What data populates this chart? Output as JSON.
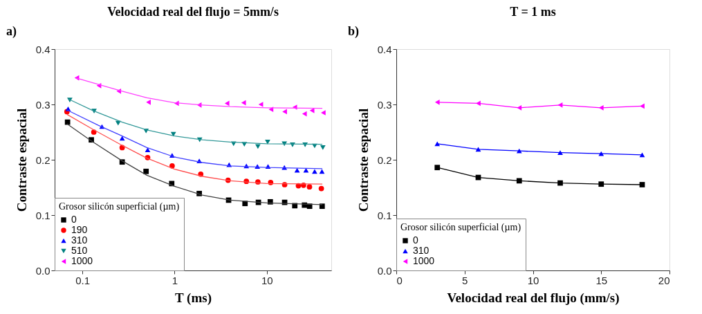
{
  "chart_data": [
    {
      "type": "scatter",
      "title": "Velocidad real del flujo = 5mm/s",
      "xlabel": "T (ms)",
      "ylabel": "Contraste espacial",
      "legend_title": "Grosor silicón superficial (µm)",
      "legend": "bottom left",
      "log": "x",
      "grid": false,
      "annotations": [
        "a)"
      ],
      "xlim": [
        0.05,
        50
      ],
      "xticks": [
        0.1,
        1,
        10
      ],
      "ylim": [
        0,
        0.4
      ],
      "yticks": [
        {
          "value": 0,
          "label": "0.0"
        },
        0.1,
        0.2,
        0.3,
        0.4
      ],
      "series": [
        {
          "name": "0",
          "type": "scatter",
          "marker": "square",
          "color": "#000000",
          "x": [
            0.069,
            0.125,
            0.27,
            0.49,
            0.93,
            1.85,
            3.85,
            5.8,
            8.1,
            10.9,
            15.6,
            20.1,
            25.6,
            29.1,
            39.8
          ],
          "values": [
            0.268,
            0.236,
            0.196,
            0.179,
            0.157,
            0.139,
            0.127,
            0.121,
            0.123,
            0.124,
            0.123,
            0.117,
            0.118,
            0.116,
            0.116
          ]
        },
        {
          "name": "190",
          "type": "scatter",
          "marker": "circle",
          "color": "#ff0000",
          "x": [
            0.068,
            0.133,
            0.27,
            0.51,
            0.94,
            1.92,
            3.8,
            6.0,
            8.0,
            11,
            15.6,
            22,
            25,
            29,
            39
          ],
          "values": [
            0.287,
            0.25,
            0.222,
            0.204,
            0.189,
            0.174,
            0.163,
            0.161,
            0.16,
            0.159,
            0.155,
            0.153,
            0.154,
            0.151,
            0.148
          ]
        },
        {
          "name": "310",
          "type": "scatter",
          "marker": "triangle",
          "color": "#0000ff",
          "x": [
            0.07,
            0.163,
            0.27,
            0.51,
            0.94,
            1.85,
            3.9,
            6.0,
            7.9,
            10.3,
            15.5,
            21.3,
            26.6,
            33,
            39.6
          ],
          "values": [
            0.292,
            0.26,
            0.239,
            0.218,
            0.208,
            0.198,
            0.191,
            0.189,
            0.188,
            0.188,
            0.186,
            0.181,
            0.181,
            0.179,
            0.179
          ]
        },
        {
          "name": "510",
          "type": "scatter",
          "marker": "triangle-down",
          "color": "#008080",
          "x": [
            0.073,
            0.134,
            0.244,
            0.49,
            0.97,
            1.87,
            4.36,
            5.7,
            8.0,
            10.2,
            15.5,
            19,
            26,
            33,
            40.5
          ],
          "values": [
            0.308,
            0.288,
            0.266,
            0.252,
            0.246,
            0.236,
            0.229,
            0.228,
            0.224,
            0.232,
            0.229,
            0.227,
            0.227,
            0.225,
            0.222
          ]
        },
        {
          "name": "1000",
          "type": "scatter",
          "marker": "triangle-left",
          "color": "#ff00ff",
          "x": [
            0.087,
            0.151,
            0.248,
            0.52,
            1.05,
            1.85,
            3.7,
            5.6,
            8.6,
            11.1,
            15.6,
            20.1,
            25.6,
            30.9,
            40.9
          ],
          "values": [
            0.348,
            0.334,
            0.324,
            0.304,
            0.302,
            0.299,
            0.302,
            0.303,
            0.3,
            0.291,
            0.287,
            0.295,
            0.283,
            0.289,
            0.285
          ]
        },
        {
          "type": "line",
          "marker": "none",
          "color": "#404040",
          "x": [
            0.068,
            0.125,
            0.27,
            0.5,
            1,
            2,
            4,
            10,
            40
          ],
          "values": [
            0.265,
            0.234,
            0.198,
            0.172,
            0.152,
            0.136,
            0.127,
            0.122,
            0.119
          ]
        },
        {
          "type": "line",
          "marker": "none",
          "color": "#ff5050",
          "x": [
            0.068,
            0.13,
            0.27,
            0.5,
            1,
            2,
            4,
            10,
            40
          ],
          "values": [
            0.282,
            0.255,
            0.226,
            0.203,
            0.183,
            0.17,
            0.162,
            0.157,
            0.156
          ]
        },
        {
          "type": "line",
          "marker": "none",
          "color": "#4040ff",
          "x": [
            0.068,
            0.15,
            0.27,
            0.5,
            1,
            2,
            4,
            10,
            40
          ],
          "values": [
            0.29,
            0.262,
            0.243,
            0.222,
            0.205,
            0.195,
            0.189,
            0.186,
            0.184
          ]
        },
        {
          "type": "line",
          "marker": "none",
          "color": "#339999",
          "x": [
            0.07,
            0.13,
            0.27,
            0.5,
            1,
            2,
            4,
            10,
            40
          ],
          "values": [
            0.31,
            0.289,
            0.268,
            0.254,
            0.243,
            0.236,
            0.232,
            0.229,
            0.228
          ]
        },
        {
          "type": "line",
          "marker": "none",
          "color": "#ff40ff",
          "x": [
            0.085,
            0.15,
            0.27,
            0.5,
            1,
            2,
            4,
            10,
            40
          ],
          "values": [
            0.348,
            0.336,
            0.324,
            0.312,
            0.303,
            0.299,
            0.296,
            0.294,
            0.293
          ]
        }
      ]
    },
    {
      "type": "line",
      "title": "T = 1 ms",
      "xlabel": "Velocidad real del flujo (mm/s)",
      "ylabel": "Contraste espacial",
      "legend_title": "Grosor silicón superficial (µm)",
      "legend": "bottom left",
      "grid": false,
      "annotations": [
        "b)"
      ],
      "xlim": [
        0,
        20
      ],
      "xticks": [
        0,
        5,
        10,
        15,
        20
      ],
      "ylim": [
        0,
        0.4
      ],
      "yticks": [
        {
          "value": 0,
          "label": "0.0"
        },
        0.1,
        0.2,
        0.3,
        0.4
      ],
      "x": [
        3,
        6,
        9,
        12,
        15,
        18
      ],
      "series": [
        {
          "name": "0",
          "marker": "square",
          "color": "#000000",
          "values": [
            0.186,
            0.168,
            0.162,
            0.158,
            0.156,
            0.155
          ]
        },
        {
          "name": "310",
          "marker": "triangle",
          "color": "#0000ff",
          "values": [
            0.229,
            0.219,
            0.216,
            0.213,
            0.211,
            0.209
          ]
        },
        {
          "name": "1000",
          "marker": "triangle-left",
          "color": "#ff00ff",
          "values": [
            0.304,
            0.302,
            0.294,
            0.299,
            0.294,
            0.297
          ]
        }
      ]
    }
  ]
}
